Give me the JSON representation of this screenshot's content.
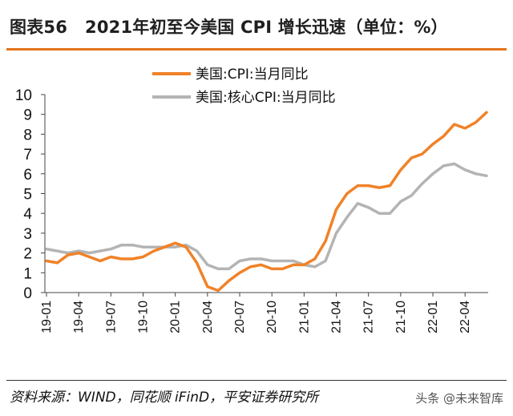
{
  "header": {
    "fig_label": "图表56",
    "title": "2021年初至今美国 CPI 增长迅速（单位：%）"
  },
  "footer": {
    "source": "资料来源：WIND，同花顺 iFinD，平安证券研究所",
    "watermark": "头条 @未来智库"
  },
  "colors": {
    "accent": "#e3741c",
    "cpi": "#f08228",
    "core": "#b4b4b4"
  },
  "chart_data": {
    "type": "line",
    "ylim": [
      0,
      10
    ],
    "yticks": [
      0,
      1,
      2,
      3,
      4,
      5,
      6,
      7,
      8,
      9,
      10
    ],
    "x": [
      "19-01",
      "19-02",
      "19-03",
      "19-04",
      "19-05",
      "19-06",
      "19-07",
      "19-08",
      "19-09",
      "19-10",
      "19-11",
      "19-12",
      "20-01",
      "20-02",
      "20-03",
      "20-04",
      "20-05",
      "20-06",
      "20-07",
      "20-08",
      "20-09",
      "20-10",
      "20-11",
      "20-12",
      "21-01",
      "21-02",
      "21-03",
      "21-04",
      "21-05",
      "21-06",
      "21-07",
      "21-08",
      "21-09",
      "21-10",
      "21-11",
      "21-12",
      "22-01",
      "22-02",
      "22-03",
      "22-04",
      "22-05",
      "22-06"
    ],
    "xtick_labels": [
      "19-01",
      "19-04",
      "19-07",
      "19-10",
      "20-01",
      "20-04",
      "20-07",
      "20-10",
      "21-01",
      "21-04",
      "21-07",
      "21-10",
      "22-01",
      "22-04"
    ],
    "legend_position": "top-right",
    "series": [
      {
        "name": "美国:CPI:当月同比",
        "color": "#f08228",
        "values": [
          1.6,
          1.5,
          1.9,
          2.0,
          1.8,
          1.6,
          1.8,
          1.7,
          1.7,
          1.8,
          2.1,
          2.3,
          2.5,
          2.3,
          1.5,
          0.3,
          0.1,
          0.6,
          1.0,
          1.3,
          1.4,
          1.2,
          1.2,
          1.4,
          1.4,
          1.7,
          2.6,
          4.2,
          5.0,
          5.4,
          5.4,
          5.3,
          5.4,
          6.2,
          6.8,
          7.0,
          7.5,
          7.9,
          8.5,
          8.3,
          8.6,
          9.1
        ]
      },
      {
        "name": "美国:核心CPI:当月同比",
        "color": "#b4b4b4",
        "values": [
          2.2,
          2.1,
          2.0,
          2.1,
          2.0,
          2.1,
          2.2,
          2.4,
          2.4,
          2.3,
          2.3,
          2.3,
          2.3,
          2.4,
          2.1,
          1.4,
          1.2,
          1.2,
          1.6,
          1.7,
          1.7,
          1.6,
          1.6,
          1.6,
          1.4,
          1.3,
          1.6,
          3.0,
          3.8,
          4.5,
          4.3,
          4.0,
          4.0,
          4.6,
          4.9,
          5.5,
          6.0,
          6.4,
          6.5,
          6.2,
          6.0,
          5.9
        ]
      }
    ]
  }
}
